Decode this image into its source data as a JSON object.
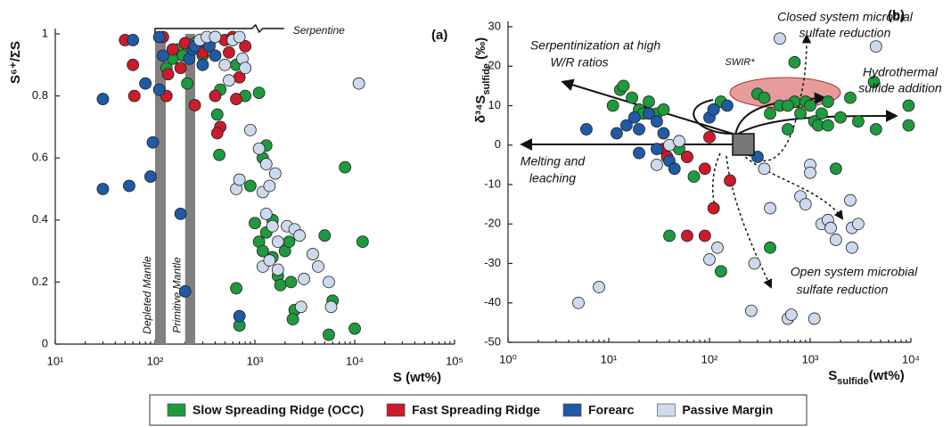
{
  "chart_data": [
    {
      "type": "scatter",
      "panel_label": "(a)",
      "y_label": "S⁶⁺/ΣS",
      "x_label": "S (wt%)",
      "log_x": true,
      "xlim": [
        10,
        100000
      ],
      "ylim": [
        0,
        1
      ],
      "xticks": [
        {
          "value": 10,
          "label": "10¹"
        },
        {
          "value": 100,
          "label": "10²"
        },
        {
          "value": 1000,
          "label": "10³"
        },
        {
          "value": 10000,
          "label": "10⁴"
        },
        {
          "value": 100000,
          "label": "10⁵"
        }
      ],
      "yticks": [
        0,
        0.2,
        0.4,
        0.6,
        0.8,
        1
      ],
      "bands": [
        {
          "label": "Depleted Mantle",
          "xrange": [
            100,
            128
          ]
        },
        {
          "label": "Primitive Mantle",
          "xrange": [
            200,
            252
          ]
        }
      ],
      "bracket": {
        "label": "Serpentine",
        "xrange": [
          100,
          1300
        ]
      },
      "series": [
        {
          "name": "Slow Spreading Ridge (OCC)",
          "color": "#1e9a3f",
          "x": [
            130,
            150,
            170,
            190,
            210,
            250,
            300,
            400,
            450,
            650,
            420,
            440,
            800,
            1100,
            1300,
            1200,
            900,
            1000,
            1100,
            1200,
            1300,
            1500,
            1700,
            1800,
            2000,
            2300,
            2500,
            2400,
            5000,
            6000,
            5500,
            10000,
            12000,
            8000,
            650,
            700,
            2200,
            1500
          ],
          "values": [
            0.89,
            0.92,
            0.95,
            0.93,
            0.84,
            0.97,
            0.93,
            0.99,
            0.82,
            0.9,
            0.74,
            0.61,
            0.8,
            0.81,
            0.64,
            0.6,
            0.51,
            0.39,
            0.33,
            0.3,
            0.36,
            0.4,
            0.22,
            0.19,
            0.3,
            0.2,
            0.11,
            0.08,
            0.35,
            0.14,
            0.03,
            0.05,
            0.33,
            0.57,
            0.18,
            0.06,
            0.33,
            0.28
          ]
        },
        {
          "name": "Fast Spreading Ridge",
          "color": "#cc1b2b",
          "x": [
            50,
            60,
            62,
            120,
            130,
            135,
            150,
            180,
            200,
            250,
            300,
            330,
            400,
            350,
            450,
            420,
            500,
            550,
            650,
            700,
            800,
            600
          ],
          "values": [
            0.98,
            0.9,
            0.8,
            0.99,
            0.8,
            0.87,
            0.95,
            0.89,
            0.97,
            0.77,
            0.94,
            0.97,
            0.8,
            0.97,
            0.7,
            0.68,
            0.98,
            0.94,
            0.79,
            0.86,
            0.96,
            0.99
          ]
        },
        {
          "name": "Forearc",
          "color": "#1f5aa6",
          "x": [
            30,
            30,
            55,
            60,
            90,
            95,
            80,
            110,
            110,
            120,
            180,
            200,
            220,
            240,
            250,
            300,
            350,
            400,
            700
          ],
          "values": [
            0.79,
            0.5,
            0.51,
            0.98,
            0.54,
            0.65,
            0.84,
            0.82,
            0.99,
            0.93,
            0.42,
            0.17,
            0.92,
            0.95,
            0.96,
            0.9,
            0.96,
            0.93,
            0.09
          ]
        },
        {
          "name": "Passive Margin",
          "color": "#cdd9ec",
          "x": [
            280,
            330,
            400,
            500,
            550,
            650,
            700,
            900,
            1100,
            1200,
            1300,
            1400,
            1600,
            1300,
            1500,
            1700,
            1200,
            1400,
            1700,
            2100,
            2500,
            2800,
            2900,
            3100,
            3800,
            4300,
            5500,
            5800,
            11000,
            600,
            750,
            800,
            700
          ],
          "values": [
            0.98,
            0.99,
            0.99,
            0.9,
            0.85,
            0.5,
            0.53,
            0.69,
            0.63,
            0.49,
            0.58,
            0.51,
            0.55,
            0.42,
            0.38,
            0.33,
            0.25,
            0.27,
            0.24,
            0.38,
            0.37,
            0.35,
            0.12,
            0.21,
            0.29,
            0.25,
            0.2,
            0.12,
            0.84,
            0.98,
            0.92,
            0.89,
            0.99
          ]
        }
      ]
    },
    {
      "type": "scatter",
      "panel_label": "(b)",
      "y_label": {
        "main": "δ³⁴S",
        "sub": "sulfide",
        "unit": " (‰)"
      },
      "x_label": {
        "main": "S",
        "sub": "sulfide",
        "unit": "(wt%)"
      },
      "log_x": true,
      "xlim": [
        1,
        10000
      ],
      "ylim": [
        -50,
        30
      ],
      "xticks": [
        {
          "value": 1,
          "label": "10⁰"
        },
        {
          "value": 10,
          "label": "10¹"
        },
        {
          "value": 100,
          "label": "10²"
        },
        {
          "value": 1000,
          "label": "10³"
        },
        {
          "value": 10000,
          "label": "10⁴"
        }
      ],
      "yticks": [
        -50,
        -40,
        -30,
        -20,
        -10,
        0,
        10,
        20,
        30
      ],
      "annotations": [
        "Closed system microbial",
        "sulfate reduction",
        "Serpentinization at high",
        "W/R ratios",
        "SWIR*",
        "Hydrothermal",
        "sulfide addition",
        "Melting and",
        "leaching",
        "Open system microbial",
        "sulfate reduction"
      ],
      "series": [
        {
          "color": "#1e9a3f",
          "x": [
            13,
            14,
            11,
            17,
            20,
            22,
            25,
            30,
            35,
            50,
            60,
            70,
            110,
            130,
            300,
            350,
            400,
            500,
            600,
            700,
            800,
            900,
            1000,
            1100,
            1200,
            1300,
            1500,
            2000,
            3000,
            2500,
            4500,
            9500,
            9500,
            700,
            1500,
            40,
            130,
            400,
            1800,
            4300,
            600
          ],
          "values": [
            14,
            15,
            10,
            12,
            9,
            8,
            11,
            8,
            9,
            -1,
            -3,
            -8,
            9,
            11,
            13,
            12,
            8,
            10,
            4,
            11,
            8,
            11,
            10,
            6,
            5,
            8,
            5,
            7,
            6,
            12,
            4,
            10,
            5,
            21,
            11,
            -23,
            -32,
            -26,
            -6,
            16,
            10
          ]
        },
        {
          "color": "#cc1b2b",
          "x": [
            35,
            38,
            60,
            90,
            100,
            110,
            160,
            60,
            90
          ],
          "values": [
            -1,
            -3,
            -3,
            -6,
            2,
            -16,
            -9,
            -23,
            -23
          ]
        },
        {
          "color": "#1f5aa6",
          "x": [
            6,
            12,
            15,
            18,
            20,
            25,
            30,
            35,
            40,
            45,
            100,
            110,
            150,
            300,
            30,
            20
          ],
          "values": [
            4,
            3,
            5,
            7,
            4,
            8,
            6,
            3,
            -4,
            -6,
            7,
            9,
            10,
            -3,
            -1,
            -2
          ]
        },
        {
          "color": "#cdd9ec",
          "x": [
            5,
            8,
            30,
            40,
            50,
            100,
            120,
            280,
            260,
            350,
            400,
            500,
            600,
            650,
            1100,
            800,
            900,
            1000,
            1000,
            1300,
            1500,
            1600,
            1800,
            2500,
            2600,
            2600,
            3000,
            4500
          ],
          "values": [
            -40,
            -36,
            -5,
            0,
            1,
            -29,
            -26,
            -30,
            -42,
            -6,
            -16,
            27,
            -44,
            -43,
            -44,
            -13,
            -15,
            -5,
            -7,
            -20,
            -19,
            -21,
            -24,
            -14,
            -21,
            -26,
            -20,
            25
          ]
        }
      ]
    }
  ]
}
